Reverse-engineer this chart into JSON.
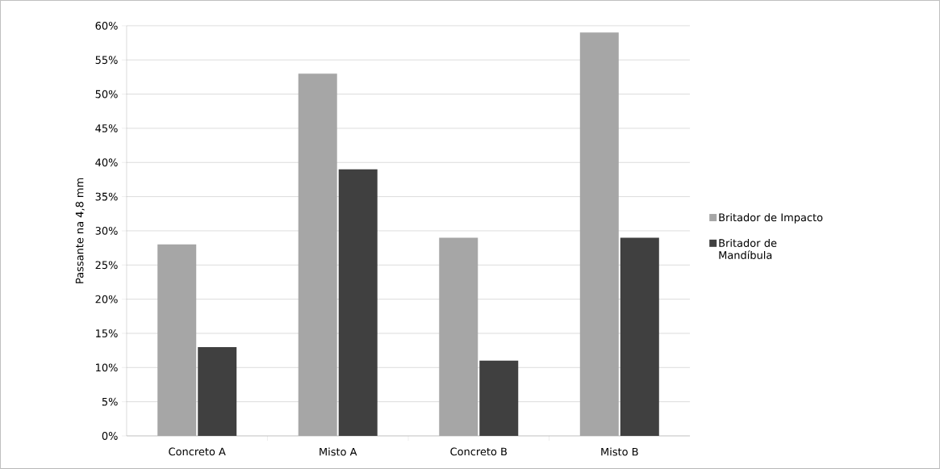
{
  "chart_data": {
    "type": "bar",
    "ylabel": "Passante na 4,8 mm",
    "categories": [
      "Concreto A",
      "Misto A",
      "Concreto B",
      "Misto B"
    ],
    "series": [
      {
        "name": "Britador de Impacto",
        "color": "#a6a6a6",
        "values": [
          28,
          53,
          29,
          59
        ]
      },
      {
        "name": "Britador de Mandíbula",
        "color": "#404040",
        "values": [
          13,
          39,
          11,
          29
        ]
      }
    ],
    "ylim": [
      0,
      60
    ],
    "yticks": [
      {
        "value": 0,
        "label": "0%"
      },
      {
        "value": 5,
        "label": "5%"
      },
      {
        "value": 10,
        "label": "10%"
      },
      {
        "value": 15,
        "label": "15%"
      },
      {
        "value": 20,
        "label": "20%"
      },
      {
        "value": 25,
        "label": "25%"
      },
      {
        "value": 30,
        "label": "30%"
      },
      {
        "value": 35,
        "label": "35%"
      },
      {
        "value": 40,
        "label": "40%"
      },
      {
        "value": 45,
        "label": "45%"
      },
      {
        "value": 50,
        "label": "50%"
      },
      {
        "value": 55,
        "label": "55%"
      },
      {
        "value": 60,
        "label": "60%"
      }
    ],
    "grid": "y",
    "legend": "right"
  }
}
